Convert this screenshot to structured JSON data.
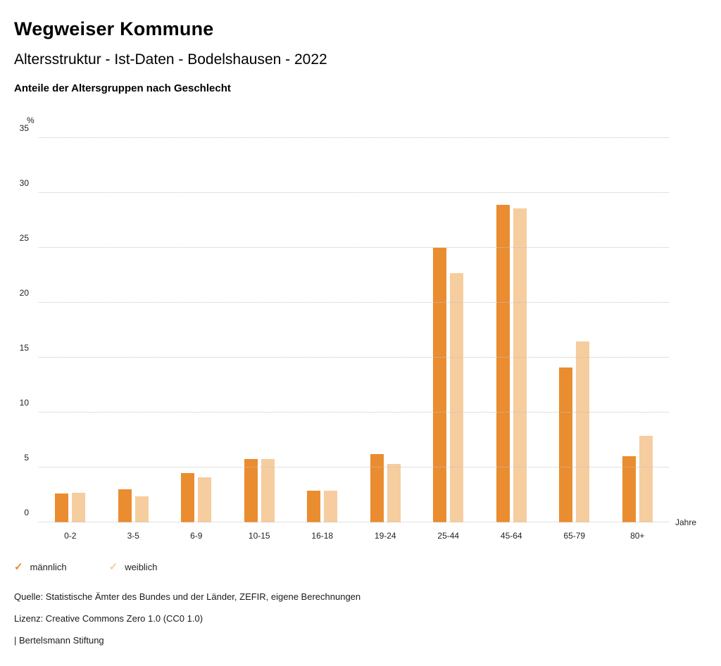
{
  "header": {
    "title": "Wegweiser Kommune",
    "subtitle": "Altersstruktur - Ist-Daten - Bodelshausen - 2022",
    "section_title": "Anteile der Altersgruppen nach Geschlecht"
  },
  "chart_data": {
    "type": "bar",
    "categories": [
      "0-2",
      "3-5",
      "6-9",
      "10-15",
      "16-18",
      "19-24",
      "25-44",
      "45-64",
      "65-79",
      "80+"
    ],
    "series": [
      {
        "name": "männlich",
        "color": "#EA8C30",
        "values": [
          2.6,
          3.0,
          4.5,
          5.8,
          2.9,
          6.2,
          25.0,
          28.9,
          14.1,
          6.0
        ]
      },
      {
        "name": "weiblich",
        "color": "#F6CD9E",
        "values": [
          2.7,
          2.4,
          4.1,
          5.8,
          2.9,
          5.3,
          22.7,
          28.6,
          16.5,
          7.9
        ]
      }
    ],
    "title": "Anteile der Altersgruppen nach Geschlecht",
    "xlabel": "Jahre",
    "ylabel": "%",
    "ylim": [
      0,
      35
    ],
    "ytick_step": 5,
    "grid": "horizontal-dotted",
    "legend_position": "bottom-left",
    "legend_marker": "checkmark"
  },
  "footer": {
    "source": "Quelle: Statistische Ämter des Bundes und der Länder, ZEFIR, eigene Berechnungen",
    "license": "Lizenz: Creative Commons Zero 1.0 (CC0 1.0)",
    "attribution": "| Bertelsmann Stiftung"
  }
}
